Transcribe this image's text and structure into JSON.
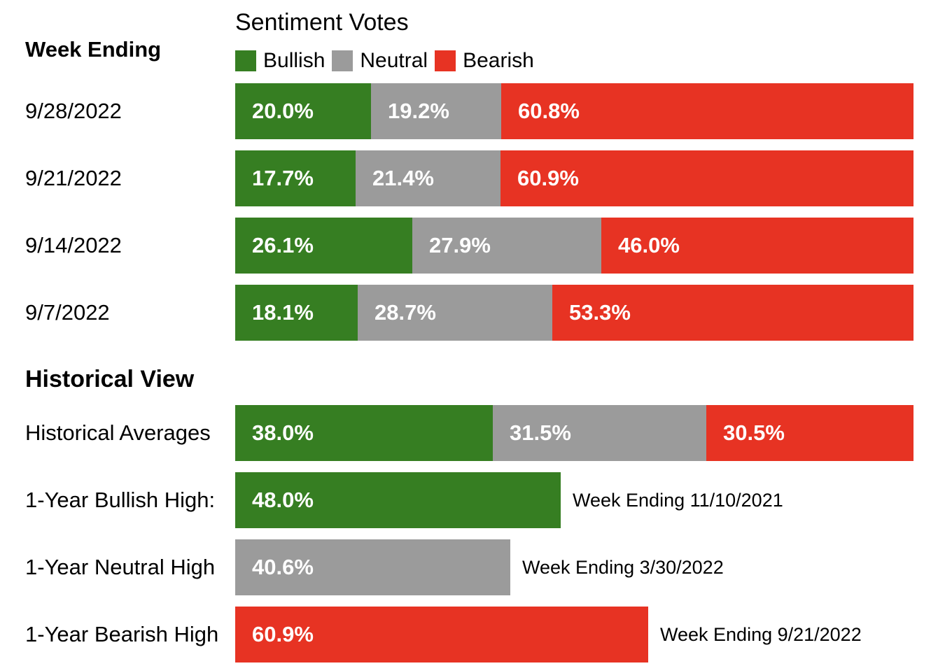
{
  "colors": {
    "bullish": "#367e22",
    "neutral": "#9b9b9b",
    "bearish": "#e73323"
  },
  "header": {
    "chart_title": "Sentiment Votes",
    "week_heading": "Week Ending",
    "historical_heading": "Historical View"
  },
  "legend": [
    {
      "label": "Bullish",
      "color": "#367e22"
    },
    {
      "label": "Neutral",
      "color": "#9b9b9b"
    },
    {
      "label": "Bearish",
      "color": "#e73323"
    }
  ],
  "chart_data": [
    {
      "type": "bar",
      "stacked": true,
      "orientation": "horizontal",
      "title": "Sentiment Votes",
      "categories": [
        "9/28/2022",
        "9/21/2022",
        "9/14/2022",
        "9/7/2022"
      ],
      "series": [
        {
          "name": "Bullish",
          "values": [
            20.0,
            17.7,
            26.1,
            18.1
          ],
          "labels": [
            "20.0%",
            "17.7%",
            "26.1%",
            "18.1%"
          ]
        },
        {
          "name": "Neutral",
          "values": [
            19.2,
            21.4,
            27.9,
            28.7
          ],
          "labels": [
            "19.2%",
            "21.4%",
            "27.9%",
            "28.7%"
          ]
        },
        {
          "name": "Bearish",
          "values": [
            60.8,
            60.9,
            46.0,
            53.3
          ],
          "labels": [
            "60.8%",
            "60.9%",
            "46.0%",
            "53.3%"
          ]
        }
      ],
      "xlim": [
        0,
        100
      ],
      "legend": "top"
    },
    {
      "type": "bar",
      "stacked": true,
      "orientation": "horizontal",
      "categories": [
        "Historical Averages"
      ],
      "series": [
        {
          "name": "Bullish",
          "values": [
            38.0
          ],
          "labels": [
            "38.0%"
          ]
        },
        {
          "name": "Neutral",
          "values": [
            31.5
          ],
          "labels": [
            "31.5%"
          ]
        },
        {
          "name": "Bearish",
          "values": [
            30.5
          ],
          "labels": [
            "30.5%"
          ]
        }
      ],
      "xlim": [
        0,
        100
      ]
    },
    {
      "type": "bar",
      "orientation": "horizontal",
      "categories": [
        "1-Year Bullish High:",
        "1-Year Neutral High",
        "1-Year Bearish High"
      ],
      "values": [
        48.0,
        40.6,
        60.9
      ],
      "labels": [
        "48.0%",
        "40.6%",
        "60.9%"
      ],
      "series_keys": [
        "bullish",
        "neutral",
        "bearish"
      ],
      "annotations": [
        "Week Ending 11/10/2021",
        "Week Ending 3/30/2022",
        "Week Ending 9/21/2022"
      ],
      "xlim": [
        0,
        100
      ]
    }
  ]
}
